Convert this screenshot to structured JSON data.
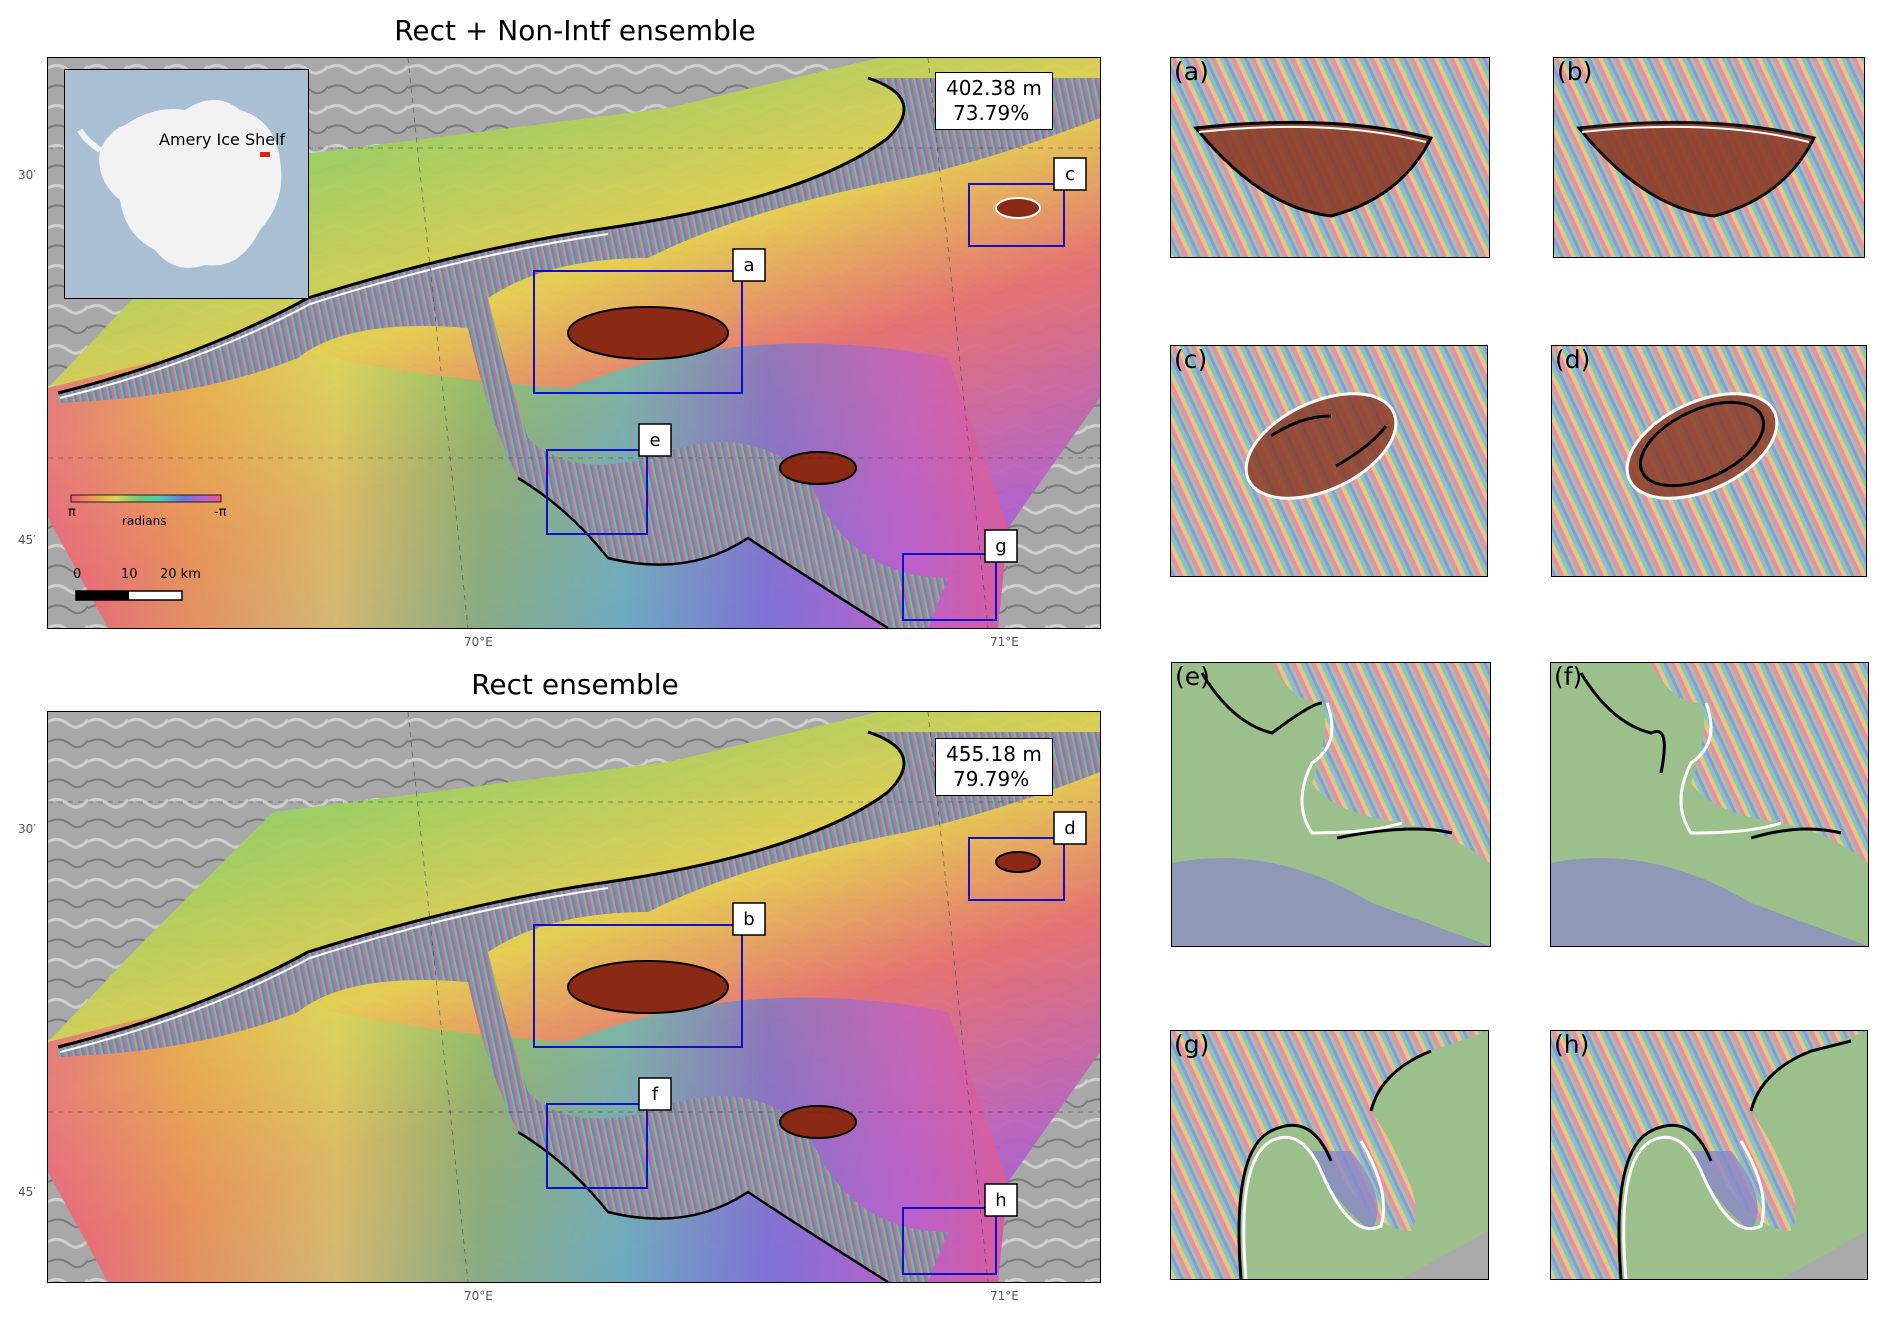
{
  "titles": {
    "top": "Rect + Non-Intf ensemble",
    "bottom": "Rect ensemble"
  },
  "stats": {
    "top": {
      "distance": "402.38 m",
      "percent": "73.79%"
    },
    "bottom": {
      "distance": "455.18 m",
      "percent": "79.79%"
    }
  },
  "inset": {
    "label": "Amery Ice Shelf"
  },
  "colorbar": {
    "left": "π",
    "right": "-π",
    "unit": "radians"
  },
  "scalebar": {
    "t0": "0",
    "t1": "10",
    "t2": "20 km"
  },
  "ticks": {
    "lat_30": "30′",
    "lat_45": "45′",
    "lon_70": "70°E",
    "lon_71": "71°E"
  },
  "boxes_top": [
    "a",
    "c",
    "e",
    "g"
  ],
  "boxes_bottom": [
    "b",
    "d",
    "f",
    "h"
  ],
  "panels": [
    "(a)",
    "(b)",
    "(c)",
    "(d)",
    "(e)",
    "(f)",
    "(g)",
    "(h)"
  ],
  "colors": {
    "box": "#1010c8",
    "grounding_line": "#000000",
    "reference_line": "#ffffff"
  }
}
